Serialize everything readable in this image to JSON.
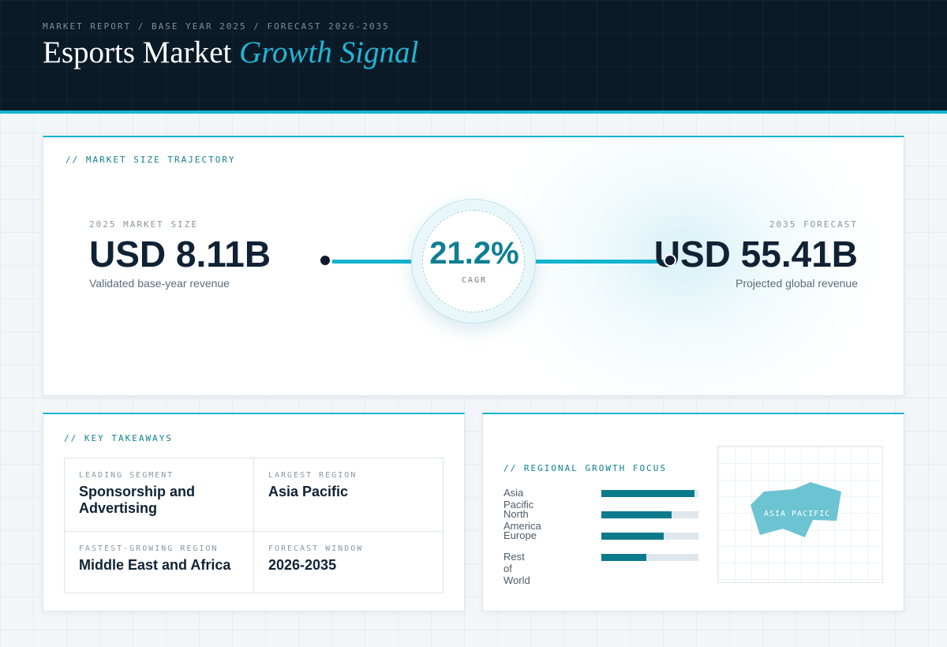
{
  "header": {
    "eyebrow": "MARKET REPORT / BASE YEAR 2025 / FORECAST 2026-2035",
    "title_main": "Esports Market",
    "title_accent": "Growth Signal"
  },
  "trajectory": {
    "label": "// MARKET SIZE TRAJECTORY",
    "start": {
      "label": "2025 MARKET SIZE",
      "value": "USD 8.11B",
      "sub": "Validated base-year revenue"
    },
    "cagr": {
      "value": "21.2%",
      "label": "CAGR"
    },
    "end": {
      "label": "2035 FORECAST",
      "value": "USD 55.41B",
      "sub": "Projected global revenue"
    }
  },
  "takeaways": {
    "label": "// KEY TAKEAWAYS",
    "items": [
      {
        "key": "LEADING SEGMENT",
        "value": "Sponsorship and Advertising"
      },
      {
        "key": "LARGEST REGION",
        "value": "Asia Pacific"
      },
      {
        "key": "FASTEST-GROWING REGION",
        "value": "Middle East and Africa"
      },
      {
        "key": "FORECAST WINDOW",
        "value": "2026-2035"
      }
    ]
  },
  "regional": {
    "label": "// REGIONAL GROWTH FOCUS",
    "bars": [
      {
        "name": "Asia Pacific",
        "share": 0.96
      },
      {
        "name": "North America",
        "share": 0.72
      },
      {
        "name": "Europe",
        "share": 0.64
      },
      {
        "name": "Rest of World",
        "share": 0.46
      }
    ],
    "map_label": "ASIA PACIFIC"
  },
  "colors": {
    "accent": "#12b4d0",
    "dark": "#0b1a27",
    "bar": "#0d7a8c",
    "map_region": "#6cc3d2"
  }
}
